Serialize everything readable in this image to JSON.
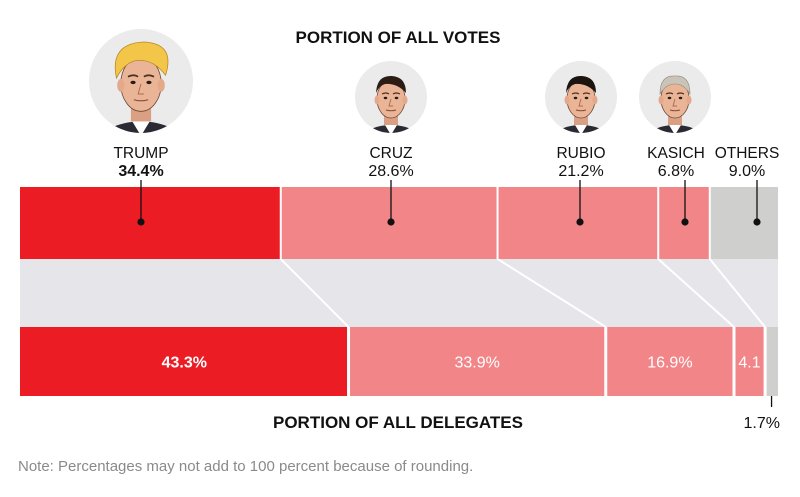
{
  "chart_data": {
    "type": "bar",
    "orientation": "horizontal-stacked",
    "categories": [
      "TRUMP",
      "CRUZ",
      "RUBIO",
      "KASICH",
      "OTHERS"
    ],
    "series": [
      {
        "name": "PORTION OF ALL VOTES",
        "values": [
          34.4,
          28.6,
          21.2,
          6.8,
          9.0
        ],
        "labels": [
          "34.4%",
          "28.6%",
          "21.2%",
          "6.8%",
          "9.0%"
        ]
      },
      {
        "name": "PORTION OF ALL DELEGATES",
        "values": [
          43.3,
          33.9,
          16.9,
          4.1,
          1.7
        ],
        "labels": [
          "43.3%",
          "33.9%",
          "16.9%",
          "4.1",
          "1.7%"
        ]
      }
    ],
    "colors": {
      "leader": "#ec1c24",
      "candidate": "#f28588",
      "others": "#cfd0ce",
      "connector": "#e6e6ea"
    },
    "portraits": [
      "TRUMP",
      "CRUZ",
      "RUBIO",
      "KASICH"
    ]
  },
  "note": "Note: Percentages may not add to 100 percent because of rounding."
}
